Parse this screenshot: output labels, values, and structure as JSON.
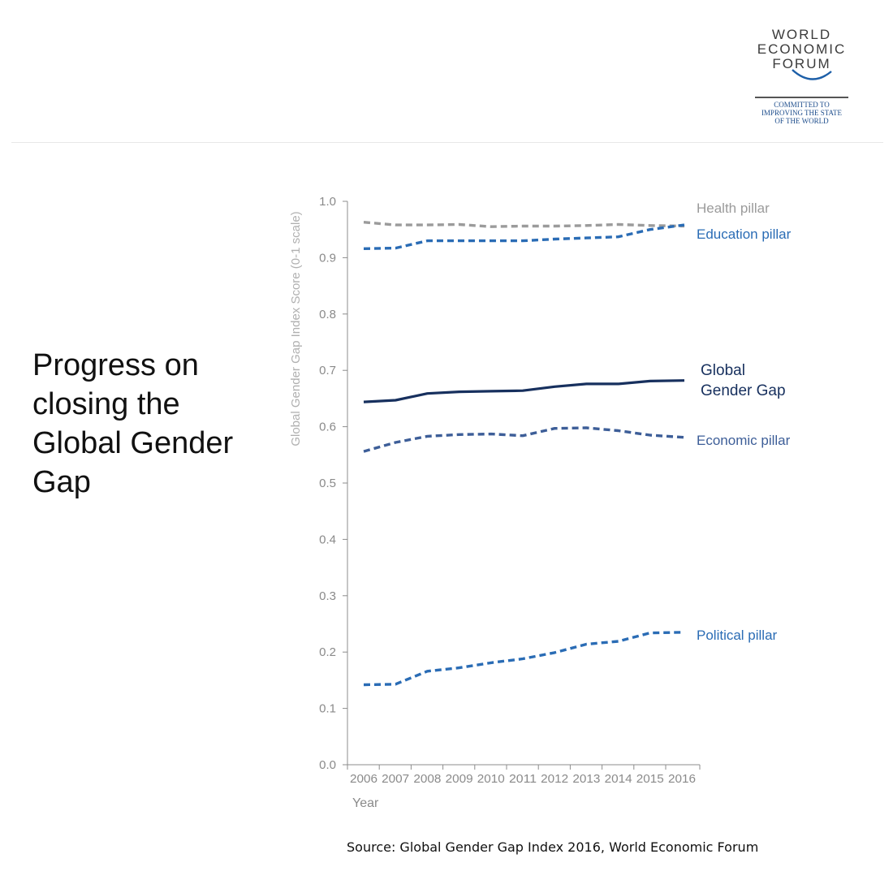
{
  "logo": {
    "wordmark": [
      "WORLD",
      "ECONOMIC",
      "FORUM"
    ],
    "tagline": [
      "COMMITTED TO",
      "IMPROVING THE STATE",
      "OF THE WORLD"
    ]
  },
  "side_title": "Progress on closing the Global Gender Gap",
  "source": "Source:  Global Gender Gap Index 2016, World Economic Forum",
  "chart_data": {
    "type": "line",
    "xlabel": "Year",
    "ylabel": "Global Gender Gap Index Score (0-1 scale)",
    "ylim": [
      0,
      1.0
    ],
    "yticks": [
      "0.0",
      "0.1",
      "0.2",
      "0.3",
      "0.4",
      "0.5",
      "0.6",
      "0.7",
      "0.8",
      "0.9",
      "1.0"
    ],
    "categories": [
      "2006",
      "2007",
      "2008",
      "2009",
      "2010",
      "2011",
      "2012",
      "2013",
      "2014",
      "2015",
      "2016"
    ],
    "grid": false,
    "legend": "direct labels at line ends (right)",
    "series": [
      {
        "name": "Health pillar",
        "label_lines": [
          "Health pillar"
        ],
        "color": "#9b9b9b",
        "dashed": true,
        "bold": false,
        "values": [
          0.963,
          0.958,
          0.958,
          0.959,
          0.955,
          0.956,
          0.956,
          0.957,
          0.959,
          0.957,
          0.956
        ]
      },
      {
        "name": "Education pillar",
        "label_lines": [
          "Education pillar"
        ],
        "color": "#2a6cb5",
        "dashed": true,
        "bold": false,
        "values": [
          0.916,
          0.917,
          0.93,
          0.93,
          0.93,
          0.93,
          0.933,
          0.935,
          0.937,
          0.95,
          0.958
        ]
      },
      {
        "name": "Global Gender Gap",
        "label_lines": [
          "Global",
          "Gender Gap"
        ],
        "color": "#17305e",
        "dashed": false,
        "bold": true,
        "values": [
          0.644,
          0.647,
          0.659,
          0.662,
          0.663,
          0.664,
          0.671,
          0.676,
          0.676,
          0.681,
          0.682
        ]
      },
      {
        "name": "Economic pillar",
        "label_lines": [
          "Economic pillar"
        ],
        "color": "#3d5e98",
        "dashed": true,
        "bold": false,
        "values": [
          0.556,
          0.572,
          0.583,
          0.586,
          0.587,
          0.584,
          0.597,
          0.598,
          0.593,
          0.585,
          0.581
        ]
      },
      {
        "name": "Political pillar",
        "label_lines": [
          "Political pillar"
        ],
        "color": "#2a6cb5",
        "dashed": true,
        "bold": false,
        "values": [
          0.142,
          0.143,
          0.166,
          0.172,
          0.181,
          0.188,
          0.199,
          0.214,
          0.219,
          0.234,
          0.235
        ]
      }
    ]
  }
}
